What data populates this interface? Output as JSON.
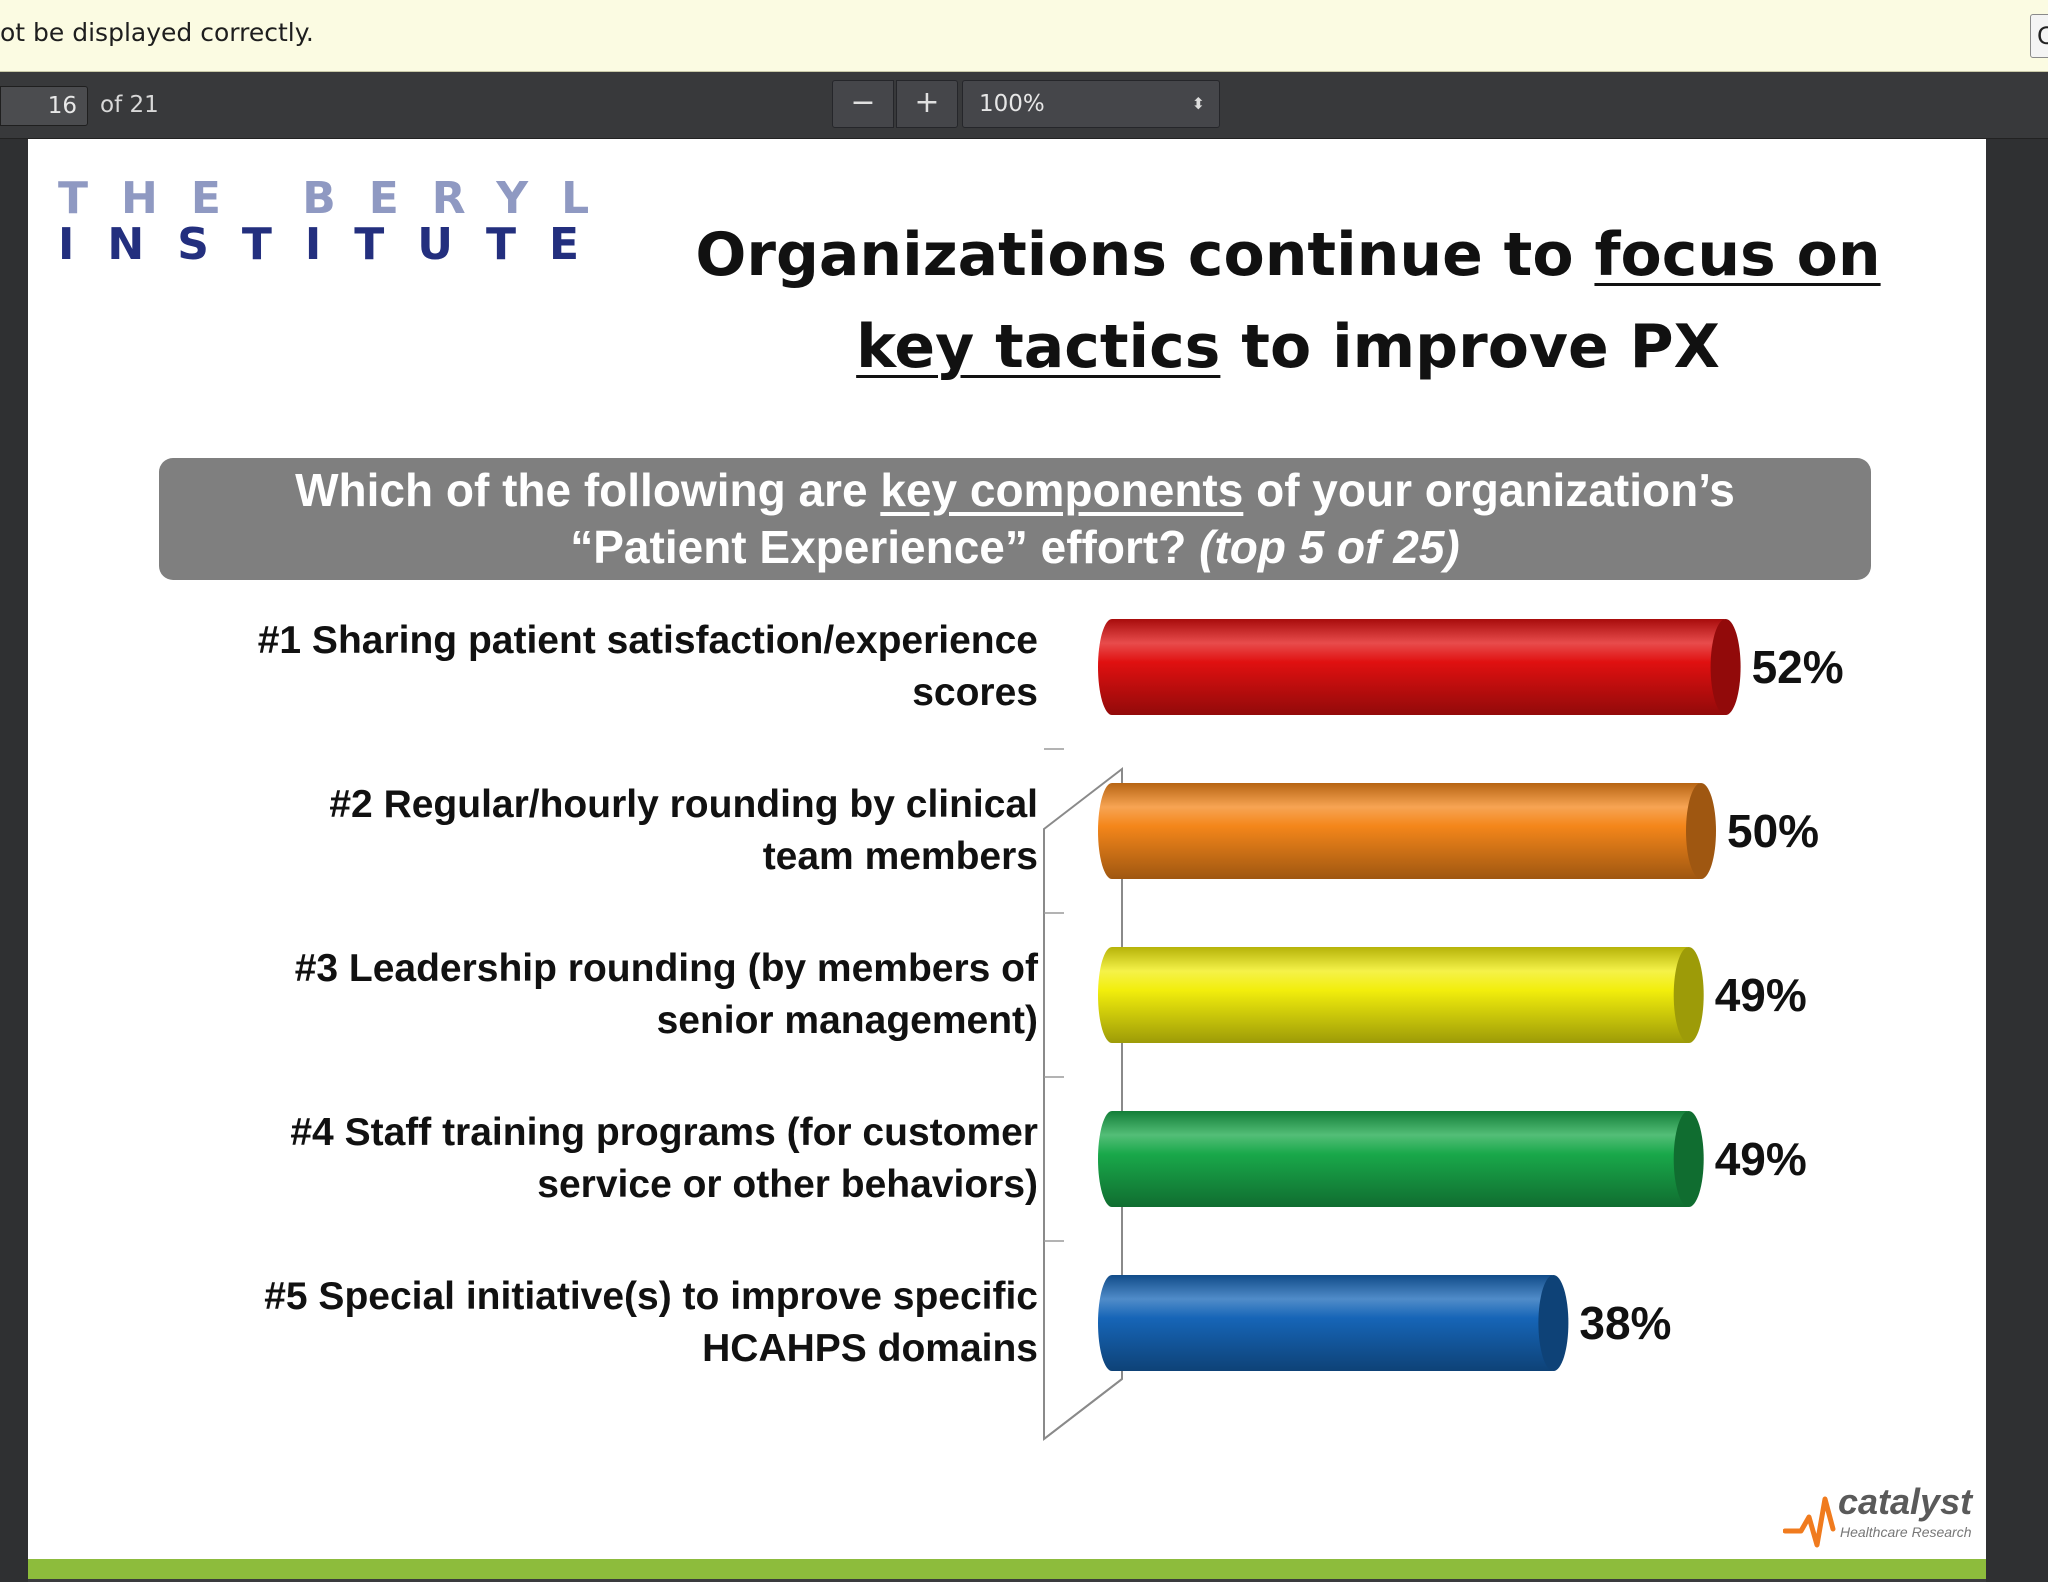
{
  "notification": {
    "text": "ot be displayed correctly.",
    "button_label": "C"
  },
  "toolbar": {
    "page_number": "16",
    "page_of": "of 21",
    "zoom_out_label": "−",
    "zoom_in_label": "+",
    "zoom_value": "100%",
    "zoom_arrow": "⬍"
  },
  "slide": {
    "logo_line1": "THE BERYL",
    "logo_line2": "INSTITUTE",
    "title_part1": "Organizations continue to ",
    "title_underlined1": "focus on key tactics",
    "title_part2": " to improve PX",
    "question_part1": "Which of the following are ",
    "question_underlined": "key components",
    "question_part2": " of your organization’s",
    "question_line2": "“Patient Experience” effort? ",
    "question_italic": "(top 5 of 25)",
    "catalyst_word": "catalyst",
    "catalyst_sub": "Healthcare Research"
  },
  "chart_data": {
    "type": "bar",
    "orientation": "horizontal",
    "categories": [
      "#1 Sharing patient satisfaction/experience scores",
      "#2 Regular/hourly rounding by clinical team members",
      "#3 Leadership rounding (by members of senior management)",
      "#4 Staff training programs (for customer service or other behaviors)",
      "#5 Special initiative(s) to improve specific HCAHPS domains"
    ],
    "category_lines": [
      [
        "#1 Sharing patient satisfaction/experience",
        "scores"
      ],
      [
        "#2 Regular/hourly rounding by clinical",
        "team members"
      ],
      [
        "#3 Leadership rounding (by members of",
        "senior management)"
      ],
      [
        "#4 Staff training programs (for customer",
        "service or other behaviors)"
      ],
      [
        "#5 Special initiative(s) to improve specific",
        "HCAHPS domains"
      ]
    ],
    "values": [
      52,
      50,
      49,
      49,
      38
    ],
    "value_labels": [
      "52%",
      "50%",
      "49%",
      "49%",
      "38%"
    ],
    "colors": [
      "#e01010",
      "#f4861a",
      "#f2ee0c",
      "#19a84a",
      "#1665b7"
    ],
    "xlim": [
      0,
      100
    ]
  }
}
